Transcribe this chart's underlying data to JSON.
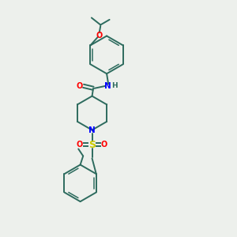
{
  "bg_color": "#edf0ec",
  "bond_color": "#2d6b5e",
  "n_color": "#0000ff",
  "o_color": "#ff0000",
  "s_color": "#cccc00",
  "figsize": [
    3.0,
    3.0
  ],
  "dpi": 100,
  "xlim": [
    0,
    10
  ],
  "ylim": [
    0,
    10
  ]
}
